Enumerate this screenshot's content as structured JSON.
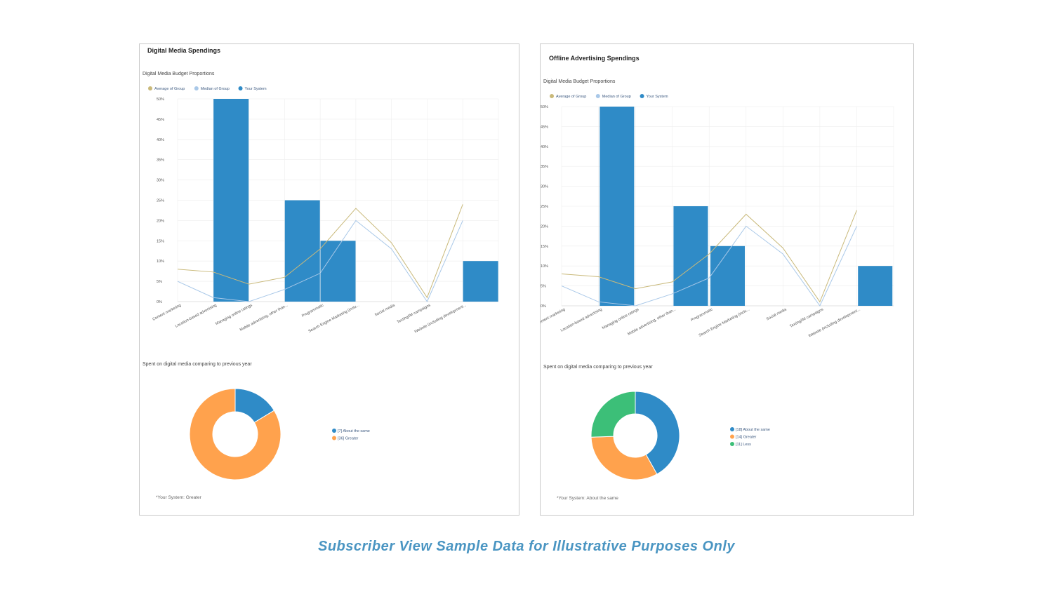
{
  "caption": "Subscriber View Sample Data for Illustrative Purposes Only",
  "colors": {
    "average": "#c9b97a",
    "median": "#a9c8e8",
    "system": "#2f8bc7",
    "about_same": "#2f8bc7",
    "greater": "#ffa24d",
    "less": "#3cbf78"
  },
  "panels": [
    {
      "title": "Digital Media Spendings",
      "footnote": "*Your System: Greater",
      "chart_data": [
        {
          "type": "bar",
          "title": "Digital Media Budget Proportions",
          "categories": [
            "Content marketing",
            "Location-based advertising",
            "Managing online ratings",
            "Mobile advertising, other than...",
            "Programmatic",
            "Search Engine Marketing (inclu...",
            "Social media",
            "Texting/IM campaigns",
            "Website (including development..."
          ],
          "ylim": [
            0,
            50
          ],
          "yticks": [
            0,
            5,
            10,
            15,
            20,
            25,
            30,
            35,
            40,
            45,
            50
          ],
          "tick_suffix": "%",
          "grid": true,
          "legend_position": "top-left",
          "series": [
            {
              "name": "Average of Group",
              "kind": "line",
              "values": [
                8,
                7.3,
                4.3,
                6,
                13,
                23,
                14.5,
                1,
                24
              ]
            },
            {
              "name": "Median of Group",
              "kind": "line",
              "values": [
                5,
                1,
                0,
                3,
                7,
                20,
                13,
                0,
                20
              ]
            },
            {
              "name": "Your System",
              "kind": "bar",
              "values": [
                null,
                50,
                null,
                25,
                15,
                null,
                null,
                null,
                10
              ]
            }
          ]
        },
        {
          "type": "pie",
          "title": "Spent on digital media comparing to previous year",
          "donut": true,
          "legend_position": "right",
          "slices": [
            {
              "label": "[7] About the same",
              "value": 7,
              "color_key": "about_same"
            },
            {
              "label": "[36] Greater",
              "value": 36,
              "color_key": "greater"
            }
          ]
        }
      ]
    },
    {
      "title": "Offline Advertising Spendings",
      "footnote": "*Your System: About the same",
      "chart_data": [
        {
          "type": "bar",
          "title": "Digital Media Budget Proportions",
          "categories": [
            "Content marketing",
            "Location-based advertising",
            "Managing online ratings",
            "Mobile advertising, other than...",
            "Programmatic",
            "Search Engine Marketing (inclu...",
            "Social media",
            "Texting/IM campaigns",
            "Website (including development..."
          ],
          "ylim": [
            0,
            50
          ],
          "yticks": [
            0,
            5,
            10,
            15,
            20,
            25,
            30,
            35,
            40,
            45,
            50
          ],
          "tick_suffix": "%",
          "grid": true,
          "legend_position": "top-left",
          "series": [
            {
              "name": "Average of Group",
              "kind": "line",
              "values": [
                8,
                7.3,
                4.3,
                6,
                13,
                23,
                14.5,
                1,
                24
              ]
            },
            {
              "name": "Median of Group",
              "kind": "line",
              "values": [
                5,
                1,
                0,
                3,
                7,
                20,
                13,
                0,
                20
              ]
            },
            {
              "name": "Your System",
              "kind": "bar",
              "values": [
                null,
                50,
                null,
                25,
                15,
                null,
                null,
                null,
                10
              ]
            }
          ]
        },
        {
          "type": "pie",
          "title": "Spent on digital media comparing to previous year",
          "donut": true,
          "legend_position": "right",
          "slices": [
            {
              "label": "[18] About the same",
              "value": 18,
              "color_key": "about_same"
            },
            {
              "label": "[14] Greater",
              "value": 14,
              "color_key": "greater"
            },
            {
              "label": "[11] Less",
              "value": 11,
              "color_key": "less"
            }
          ]
        }
      ]
    }
  ]
}
